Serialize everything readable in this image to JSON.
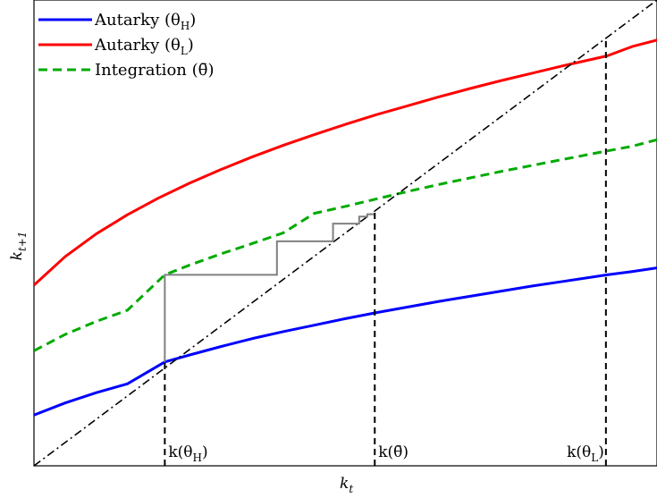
{
  "chart_data": {
    "type": "line",
    "title": "",
    "xlabel": "k",
    "xlabel_sub": "t",
    "ylabel": "k",
    "ylabel_sub": "t+1",
    "xlim": [
      0,
      1
    ],
    "ylim": [
      0,
      1
    ],
    "ticks_shown": false,
    "grid": false,
    "legend_position": "top-left",
    "series": [
      {
        "name": "Autarky (θH)",
        "legend_text": "Autarky (θ",
        "legend_sub": "H",
        "legend_close": ")",
        "color": "#0000ff",
        "style": "solid",
        "x": [
          0,
          0.05,
          0.1,
          0.15,
          0.21,
          0.25,
          0.3,
          0.35,
          0.4,
          0.45,
          0.5,
          0.55,
          0.6,
          0.65,
          0.7,
          0.75,
          0.8,
          0.85,
          0.92,
          0.96,
          1.0
        ],
        "y": [
          0.109,
          0.135,
          0.157,
          0.176,
          0.223,
          0.238,
          0.256,
          0.273,
          0.288,
          0.302,
          0.316,
          0.329,
          0.341,
          0.353,
          0.364,
          0.375,
          0.386,
          0.396,
          0.41,
          0.417,
          0.425
        ]
      },
      {
        "name": "Autarky (θL)",
        "legend_text": "Autarky (θ",
        "legend_sub": "L",
        "legend_close": ")",
        "color": "#ff0000",
        "style": "solid",
        "x": [
          0,
          0.05,
          0.1,
          0.15,
          0.2,
          0.25,
          0.3,
          0.35,
          0.4,
          0.45,
          0.5,
          0.55,
          0.6,
          0.65,
          0.7,
          0.75,
          0.8,
          0.85,
          0.92,
          0.96,
          1.0
        ],
        "y": [
          0.388,
          0.449,
          0.498,
          0.539,
          0.575,
          0.607,
          0.636,
          0.663,
          0.688,
          0.711,
          0.733,
          0.754,
          0.773,
          0.792,
          0.81,
          0.827,
          0.843,
          0.859,
          0.88,
          0.9,
          0.914
        ]
      },
      {
        "name": "Integration (θ̄)",
        "legend_text": "Integration (θ̄)",
        "legend_sub": "",
        "legend_close": "",
        "color": "#00aa00",
        "style": "dashed",
        "x": [
          0,
          0.05,
          0.1,
          0.15,
          0.21,
          0.25,
          0.3,
          0.35,
          0.4,
          0.45,
          0.5,
          0.55,
          0.6,
          0.65,
          0.7,
          0.75,
          0.8,
          0.85,
          0.92,
          0.96,
          1.0
        ],
        "y": [
          0.247,
          0.282,
          0.31,
          0.334,
          0.41,
          0.431,
          0.455,
          0.477,
          0.5,
          0.542,
          0.557,
          0.573,
          0.589,
          0.604,
          0.618,
          0.632,
          0.645,
          0.658,
          0.676,
          0.686,
          0.7
        ]
      },
      {
        "name": "45° line",
        "color": "#000000",
        "style": "dashdot",
        "x": [
          0,
          1.0
        ],
        "y": [
          0,
          1.0
        ]
      }
    ],
    "cobweb": {
      "color": "#808080",
      "points": [
        [
          0.21,
          0.223
        ],
        [
          0.21,
          0.41
        ],
        [
          0.39,
          0.41
        ],
        [
          0.39,
          0.482
        ],
        [
          0.48,
          0.482
        ],
        [
          0.48,
          0.52
        ],
        [
          0.522,
          0.52
        ],
        [
          0.522,
          0.535
        ],
        [
          0.535,
          0.535
        ],
        [
          0.535,
          0.54
        ],
        [
          0.547,
          0.54
        ]
      ]
    },
    "vertical_guides": [
      {
        "x": 0.21,
        "y_top": 0.223,
        "label": "k(θ",
        "sub": "H",
        "close": ")"
      },
      {
        "x": 0.547,
        "y_top": 0.547,
        "label": "k(θ̄)",
        "sub": "",
        "close": ""
      },
      {
        "x": 0.918,
        "y_top": 0.918,
        "label": "k(θ",
        "sub": "L",
        "close": ")"
      }
    ]
  }
}
